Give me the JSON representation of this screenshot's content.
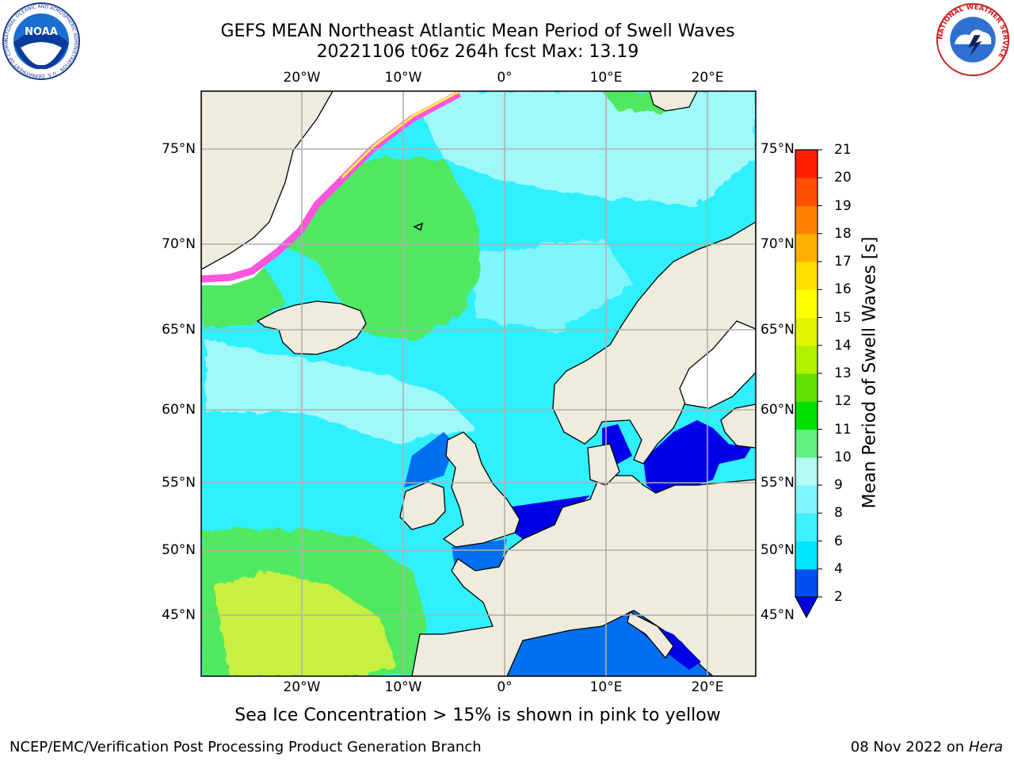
{
  "title_line1": "GEFS MEAN Northeast Atlantic Mean Period of Swell Waves",
  "title_line2": "20221106 t06z 264h fcst   Max: 13.19",
  "lon_labels": [
    "20°W",
    "10°W",
    "0°",
    "10°E",
    "20°E"
  ],
  "lat_labels": [
    "75°N",
    "70°N",
    "65°N",
    "60°N",
    "55°N",
    "50°N",
    "45°N"
  ],
  "colorbar": {
    "label": "Mean Period of Swell Waves [s]",
    "ticks": [
      "2",
      "4",
      "6",
      "8",
      "9",
      "10",
      "11",
      "12",
      "13",
      "14",
      "15",
      "16",
      "17",
      "18",
      "19",
      "20",
      "21"
    ],
    "colors": [
      "#0050f0",
      "#00e6ff",
      "#40f0ff",
      "#80f4ff",
      "#b4fbf4",
      "#60f080",
      "#00e000",
      "#60e000",
      "#b0f000",
      "#e0f400",
      "#ffff00",
      "#ffe000",
      "#ffb000",
      "#ff8000",
      "#ff5000",
      "#ff2000"
    ],
    "under_color": "#0000e0"
  },
  "subtitle": "Sea Ice Concentration > 15% is shown in pink to yellow",
  "credit": "NCEP/EMC/Verification Post Processing Product Generation Branch",
  "date": "08 Nov 2022 on",
  "host": "Hera",
  "logos": {
    "noaa": "NOAA",
    "noaa_ring": "NATIONAL OCEANIC AND ATMOSPHERIC ADMINISTRATION · U.S. DEPARTMENT OF COMMERCE",
    "nws_ring": "NATIONAL WEATHER SERVICE"
  },
  "colors": {
    "land": "#eeecdc",
    "ice_edge": "#ff55dd",
    "ice_yellow": "#ffee44",
    "ocean_base": "#2ff0ff",
    "swell_light": "#a0f8f8",
    "swell_green": "#50e860",
    "swell_yellow": "#c8f040",
    "sea_blue": "#0070f0",
    "sea_deep": "#0000e8"
  }
}
